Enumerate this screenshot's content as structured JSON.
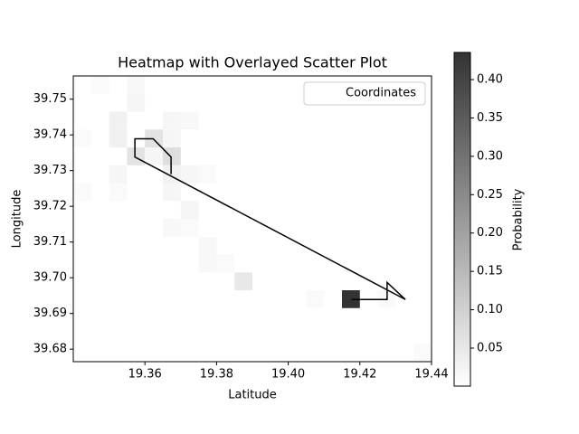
{
  "chart_data": {
    "type": "heatmap",
    "title": "Heatmap with Overlayed Scatter Plot",
    "x_label": "Latitude",
    "y_label": "Longitude",
    "colorbar_label": "Probability",
    "colormap": "Greys",
    "alpha": 0.8,
    "xlim": [
      19.34,
      19.44
    ],
    "ylim": [
      39.6765,
      39.7565
    ],
    "xticks": [
      19.36,
      19.38,
      {
        "value": 19.4,
        "label": "19.40"
      },
      19.42,
      19.44
    ],
    "yticks": [
      39.68,
      39.69,
      {
        "value": 39.7,
        "label": "39.70"
      },
      39.71,
      39.72,
      39.73,
      39.74,
      39.75
    ],
    "clim": [
      0.0005,
      0.4354
    ],
    "cticks": [
      0.05,
      {
        "value": 0.1,
        "label": "0.10"
      },
      0.15,
      {
        "value": 0.2,
        "label": "0.20"
      },
      0.25,
      {
        "value": 0.3,
        "label": "0.30"
      },
      0.35,
      {
        "value": 0.4,
        "label": "0.40"
      }
    ],
    "cells": [
      {
        "x": 19.4175,
        "y": 39.694,
        "value": 0.4354
      },
      {
        "x": 19.3875,
        "y": 39.699,
        "value": 0.05
      },
      {
        "x": 19.3625,
        "y": 39.739,
        "value": 0.06
      },
      {
        "x": 19.3575,
        "y": 39.734,
        "value": 0.06
      },
      {
        "x": 19.3675,
        "y": 39.734,
        "value": 0.07
      },
      {
        "x": 19.3625,
        "y": 39.734,
        "value": 0.02
      },
      {
        "x": 19.3525,
        "y": 39.744,
        "value": 0.03
      },
      {
        "x": 19.3575,
        "y": 39.754,
        "value": 0.015
      },
      {
        "x": 19.3475,
        "y": 39.754,
        "value": 0.01
      },
      {
        "x": 19.3575,
        "y": 39.749,
        "value": 0.02
      },
      {
        "x": 19.3525,
        "y": 39.739,
        "value": 0.03
      },
      {
        "x": 19.3425,
        "y": 39.739,
        "value": 0.01
      },
      {
        "x": 19.3675,
        "y": 39.744,
        "value": 0.02
      },
      {
        "x": 19.3725,
        "y": 39.744,
        "value": 0.015
      },
      {
        "x": 19.3675,
        "y": 39.739,
        "value": 0.02
      },
      {
        "x": 19.3525,
        "y": 39.729,
        "value": 0.02
      },
      {
        "x": 19.3525,
        "y": 39.724,
        "value": 0.01
      },
      {
        "x": 19.3425,
        "y": 39.724,
        "value": 0.01
      },
      {
        "x": 19.3675,
        "y": 39.729,
        "value": 0.03
      },
      {
        "x": 19.3675,
        "y": 39.724,
        "value": 0.02
      },
      {
        "x": 19.3725,
        "y": 39.729,
        "value": 0.02
      },
      {
        "x": 19.3775,
        "y": 39.729,
        "value": 0.01
      },
      {
        "x": 19.3725,
        "y": 39.719,
        "value": 0.02
      },
      {
        "x": 19.3675,
        "y": 39.714,
        "value": 0.015
      },
      {
        "x": 19.3725,
        "y": 39.714,
        "value": 0.01
      },
      {
        "x": 19.3775,
        "y": 39.709,
        "value": 0.015
      },
      {
        "x": 19.3775,
        "y": 39.704,
        "value": 0.015
      },
      {
        "x": 19.3825,
        "y": 39.704,
        "value": 0.01
      },
      {
        "x": 19.4075,
        "y": 39.694,
        "value": 0.01
      },
      {
        "x": 19.4275,
        "y": 39.694,
        "value": 0.01
      },
      {
        "x": 19.4375,
        "y": 39.679,
        "value": 0.01
      }
    ],
    "series": [
      {
        "name": "Coordinates",
        "color": "#000000",
        "x": [
          19.4177,
          19.4276,
          19.4276,
          19.4327,
          19.3572,
          19.3572,
          19.3623,
          19.3673,
          19.3673
        ],
        "values": [
          39.6939,
          39.6939,
          39.6987,
          39.6939,
          39.7338,
          39.7389,
          39.7389,
          39.7338,
          39.729
        ]
      }
    ],
    "legend": "upper right"
  }
}
